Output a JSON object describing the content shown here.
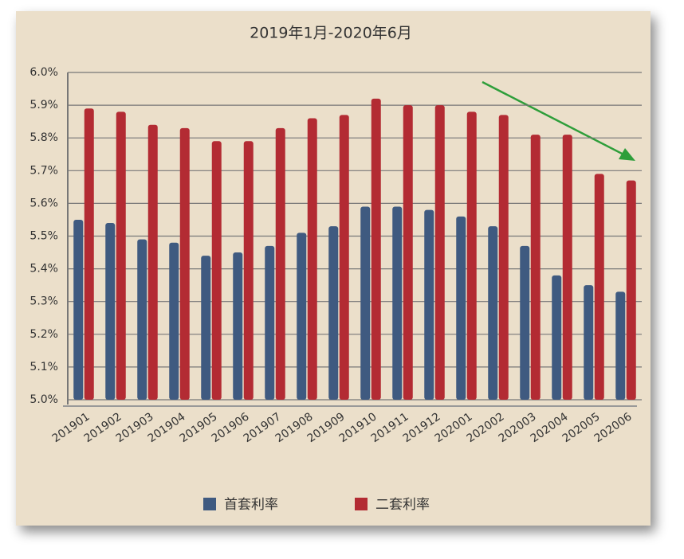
{
  "chart_data": {
    "type": "bar",
    "title": "2019年1月-2020年6月",
    "categories": [
      "201901",
      "201902",
      "201903",
      "201904",
      "201905",
      "201906",
      "201907",
      "201908",
      "201909",
      "201910",
      "201911",
      "201912",
      "202001",
      "202002",
      "202003",
      "202004",
      "202005",
      "202006"
    ],
    "series": [
      {
        "name": "首套利率",
        "color": "#3f5a80",
        "values": [
          5.55,
          5.54,
          5.49,
          5.48,
          5.44,
          5.45,
          5.47,
          5.51,
          5.53,
          5.59,
          5.59,
          5.58,
          5.56,
          5.53,
          5.47,
          5.38,
          5.35,
          5.33
        ]
      },
      {
        "name": "二套利率",
        "color": "#b32b33",
        "values": [
          5.89,
          5.88,
          5.84,
          5.83,
          5.79,
          5.79,
          5.83,
          5.86,
          5.87,
          5.92,
          5.9,
          5.9,
          5.88,
          5.87,
          5.81,
          5.81,
          5.69,
          5.67
        ]
      }
    ],
    "ylim": [
      5.0,
      6.0
    ],
    "yticks": [
      {
        "value": 5.0,
        "label": "5.0%"
      },
      {
        "value": 5.1,
        "label": "5.1%"
      },
      {
        "value": 5.2,
        "label": "5.2%"
      },
      {
        "value": 5.3,
        "label": "5.3%"
      },
      {
        "value": 5.4,
        "label": "5.4%"
      },
      {
        "value": 5.5,
        "label": "5.5%"
      },
      {
        "value": 5.6,
        "label": "5.6%"
      },
      {
        "value": 5.7,
        "label": "5.7%"
      },
      {
        "value": 5.8,
        "label": "5.8%"
      },
      {
        "value": 5.9,
        "label": "5.9%"
      },
      {
        "value": 6.0,
        "label": "6.0%"
      }
    ],
    "grid": true
  }
}
